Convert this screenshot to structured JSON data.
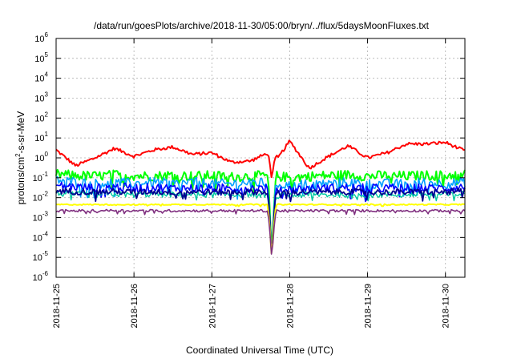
{
  "chart_data": {
    "type": "line",
    "title": "/data/run/goesPlots/archive/2018-11-30/05:00/bryn/../flux/5daysMoonFluxes.txt",
    "xlabel": "Coordinated Universal Time (UTC)",
    "ylabel": {
      "prefix": "protons/cm",
      "sup": "2",
      "suffix": "-s-sr-MeV"
    },
    "yscale": "log",
    "ylim": [
      1e-06,
      1000000.0
    ],
    "xlim": [
      "2018-11-25",
      "2018-11-30T06:00"
    ],
    "grid": true,
    "x_ticks": [
      "2018-11-25",
      "2018-11-26",
      "2018-11-27",
      "2018-11-28",
      "2018-11-29",
      "2018-11-30"
    ],
    "y_ticks": [
      {
        "base": "10",
        "exp": "6"
      },
      {
        "base": "10",
        "exp": "5"
      },
      {
        "base": "10",
        "exp": "4"
      },
      {
        "base": "10",
        "exp": "3"
      },
      {
        "base": "10",
        "exp": "2"
      },
      {
        "base": "10",
        "exp": "1"
      },
      {
        "base": "10",
        "exp": "0"
      },
      {
        "base": "10",
        "exp": "-1"
      },
      {
        "base": "10",
        "exp": "-2"
      },
      {
        "base": "10",
        "exp": "-3"
      },
      {
        "base": "10",
        "exp": "-4"
      },
      {
        "base": "10",
        "exp": "-5"
      },
      {
        "base": "10",
        "exp": "-6"
      }
    ],
    "x_days": [
      0,
      0.25,
      0.5,
      0.75,
      1.0,
      1.25,
      1.5,
      1.75,
      2.0,
      2.25,
      2.5,
      2.75,
      2.85,
      3.0,
      3.25,
      3.5,
      3.75,
      4.0,
      4.25,
      4.5,
      4.75,
      5.0,
      5.25
    ],
    "dip": {
      "x_days": 2.77,
      "min_y": 7e-06
    },
    "series": [
      {
        "color": "#ff0000",
        "width": 2.0,
        "noise": 0.08,
        "values": [
          2.5,
          0.4,
          1.0,
          3.0,
          1.2,
          2.5,
          3.5,
          1.5,
          1.8,
          0.6,
          0.7,
          2.0,
          1.0,
          7.0,
          0.3,
          1.2,
          4.0,
          1.0,
          1.8,
          5.0,
          5.0,
          6.0,
          2.2
        ]
      },
      {
        "color": "#00ff00",
        "width": 2.0,
        "noise": 0.25,
        "values": [
          0.15,
          0.13,
          0.12,
          0.14,
          0.13,
          0.12,
          0.14,
          0.12,
          0.13,
          0.11,
          0.12,
          0.13,
          0.12,
          0.1,
          0.12,
          0.13,
          0.14,
          0.12,
          0.13,
          0.12,
          0.13,
          0.13,
          0.15
        ]
      },
      {
        "color": "#00a0ff",
        "width": 1.6,
        "noise": 0.25,
        "values": [
          0.08,
          0.06,
          0.05,
          0.06,
          0.05,
          0.06,
          0.05,
          0.06,
          0.05,
          0.05,
          0.06,
          0.05,
          0.05,
          0.04,
          0.05,
          0.05,
          0.06,
          0.05,
          0.05,
          0.05,
          0.06,
          0.05,
          0.06
        ]
      },
      {
        "color": "#0000ff",
        "width": 1.6,
        "noise": 0.22,
        "values": [
          0.04,
          0.035,
          0.03,
          0.035,
          0.03,
          0.032,
          0.03,
          0.03,
          0.03,
          0.03,
          0.03,
          0.03,
          0.028,
          0.025,
          0.03,
          0.03,
          0.032,
          0.03,
          0.03,
          0.03,
          0.03,
          0.03,
          0.035
        ]
      },
      {
        "color": "#00c8a0",
        "width": 1.4,
        "noise": 0.15,
        "values": [
          0.016,
          0.015,
          0.014,
          0.015,
          0.014,
          0.015,
          0.014,
          0.015,
          0.014,
          0.014,
          0.015,
          0.014,
          0.014,
          0.013,
          0.014,
          0.014,
          0.015,
          0.014,
          0.014,
          0.014,
          0.015,
          0.014,
          0.016
        ]
      },
      {
        "color": "#000090",
        "width": 1.8,
        "noise": 0.15,
        "values": [
          0.022,
          0.02,
          0.019,
          0.02,
          0.019,
          0.02,
          0.019,
          0.02,
          0.019,
          0.019,
          0.02,
          0.019,
          0.019,
          0.018,
          0.019,
          0.019,
          0.02,
          0.019,
          0.019,
          0.019,
          0.02,
          0.019,
          0.022
        ]
      },
      {
        "color": "#ffff00",
        "width": 2.0,
        "noise": 0.03,
        "values": [
          0.0045,
          0.0045,
          0.0045,
          0.0045,
          0.0045,
          0.0045,
          0.0045,
          0.0045,
          0.0045,
          0.0045,
          0.0045,
          0.0045,
          0.0045,
          0.0045,
          0.0045,
          0.0045,
          0.0045,
          0.0045,
          0.0045,
          0.0045,
          0.0045,
          0.0045,
          0.0045
        ]
      },
      {
        "color": "#803080",
        "width": 1.6,
        "noise": 0.06,
        "values": [
          0.0022,
          0.0022,
          0.0022,
          0.0023,
          0.0022,
          0.0022,
          0.0022,
          0.0022,
          0.0022,
          0.0022,
          0.0022,
          0.0022,
          0.0022,
          0.0022,
          0.0022,
          0.0022,
          0.0022,
          0.0022,
          0.0022,
          0.0022,
          0.0022,
          0.0022,
          0.0022
        ]
      }
    ]
  }
}
